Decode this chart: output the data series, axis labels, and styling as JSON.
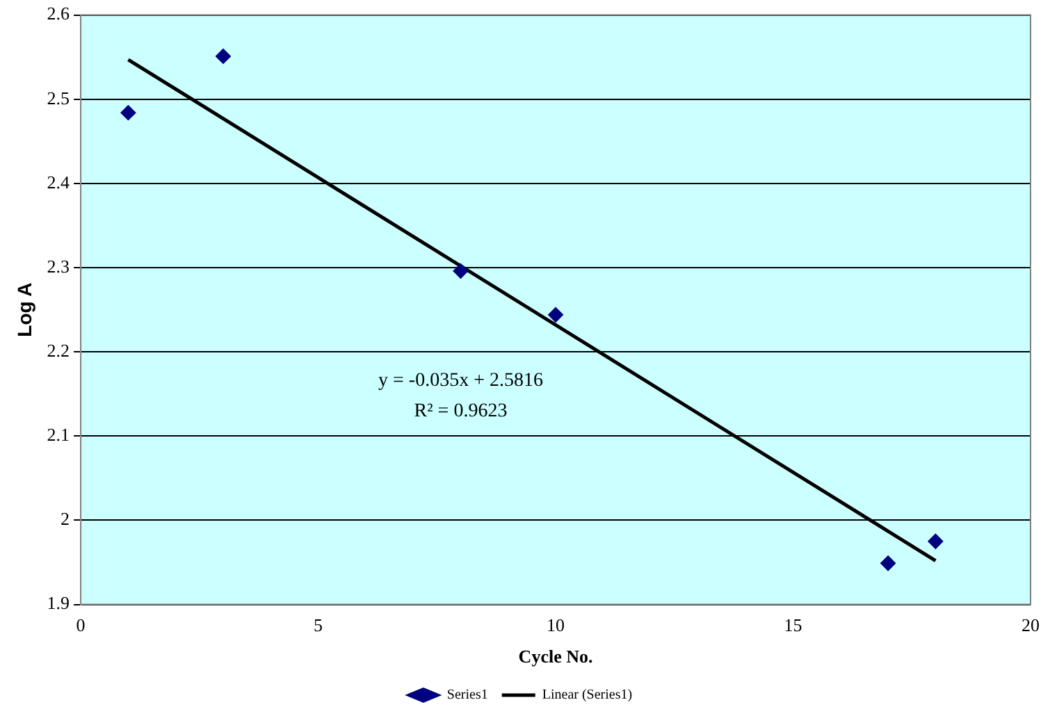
{
  "chart_data": {
    "type": "scatter",
    "xlabel": "Cycle No.",
    "ylabel": "Log A",
    "series": [
      {
        "name": "Series1",
        "marker": "diamond",
        "color": "#000080",
        "x": [
          1,
          3,
          8,
          10,
          17,
          18
        ],
        "values": [
          2.484,
          2.551,
          2.296,
          2.244,
          1.949,
          1.975
        ]
      },
      {
        "name": "Linear (Series1)",
        "type": "line",
        "marker": "none",
        "line_style": "solid",
        "color": "#000000",
        "x": [
          1,
          18
        ],
        "values": [
          2.547,
          1.952
        ]
      }
    ],
    "xlim": [
      0,
      20
    ],
    "xticks": [
      0,
      5,
      10,
      15,
      20
    ],
    "ylim": [
      1.9,
      2.6
    ],
    "yticks": [
      1.9,
      2,
      2.1,
      2.2,
      2.3,
      2.4,
      2.5,
      2.6
    ],
    "annotations": [
      "y = -0.035x + 2.5816",
      "R² = 0.9623"
    ],
    "grid": "y",
    "legend": "bottom"
  }
}
